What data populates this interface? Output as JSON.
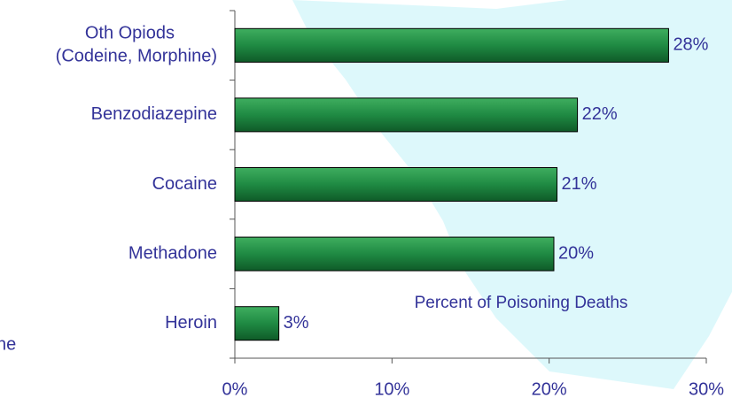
{
  "chart_data": {
    "type": "barh",
    "categories": [
      "Oth Opiods\n(Codeine, Morphine)",
      "Benzodiazepine",
      "Cocaine",
      "Methadone",
      "Heroin"
    ],
    "values": [
      27.6,
      21.8,
      20.5,
      20.3,
      2.8
    ],
    "value_labels": [
      "28%",
      "22%",
      "21%",
      "20%",
      "3%"
    ],
    "color": "#1f8a43",
    "xlim": [
      0,
      30
    ],
    "xticks": [
      {
        "value": 0,
        "label": "0%"
      },
      {
        "value": 10,
        "label": "10%"
      },
      {
        "value": 20,
        "label": "20%"
      },
      {
        "value": 30,
        "label": "30%"
      }
    ],
    "annotation": "Percent of Poisoning Deaths",
    "left_fragment": "ne"
  }
}
